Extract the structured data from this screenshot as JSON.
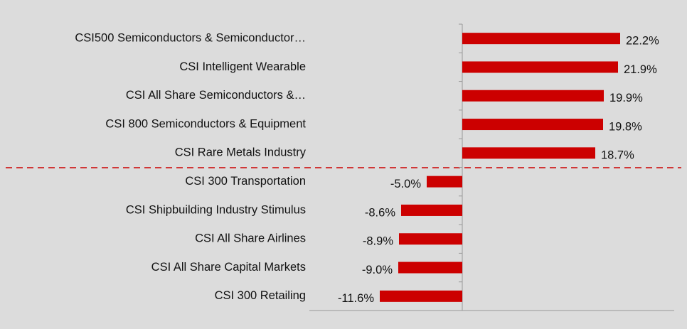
{
  "chart_data": {
    "type": "bar",
    "orientation": "horizontal",
    "categories": [
      "CSI500 Semiconductors & Semiconductor…",
      "CSI Intelligent Wearable",
      "CSI All Share Semiconductors &…",
      "CSI 800 Semiconductors & Equipment",
      "CSI Rare Metals Industry",
      "CSI 300 Transportation",
      "CSI Shipbuilding Industry Stimulus",
      "CSI All Share Airlines",
      "CSI All Share Capital Markets",
      "CSI 300 Retailing"
    ],
    "values": [
      22.2,
      21.9,
      19.9,
      19.8,
      18.7,
      -5.0,
      -8.6,
      -8.9,
      -9.0,
      -11.6
    ],
    "value_labels": [
      "22.2%",
      "21.9%",
      "19.9%",
      "19.8%",
      "18.7%",
      "-5.0%",
      "-8.6%",
      "-8.9%",
      "-9.0%",
      "-11.6%"
    ],
    "color": "#cc0000"
  }
}
